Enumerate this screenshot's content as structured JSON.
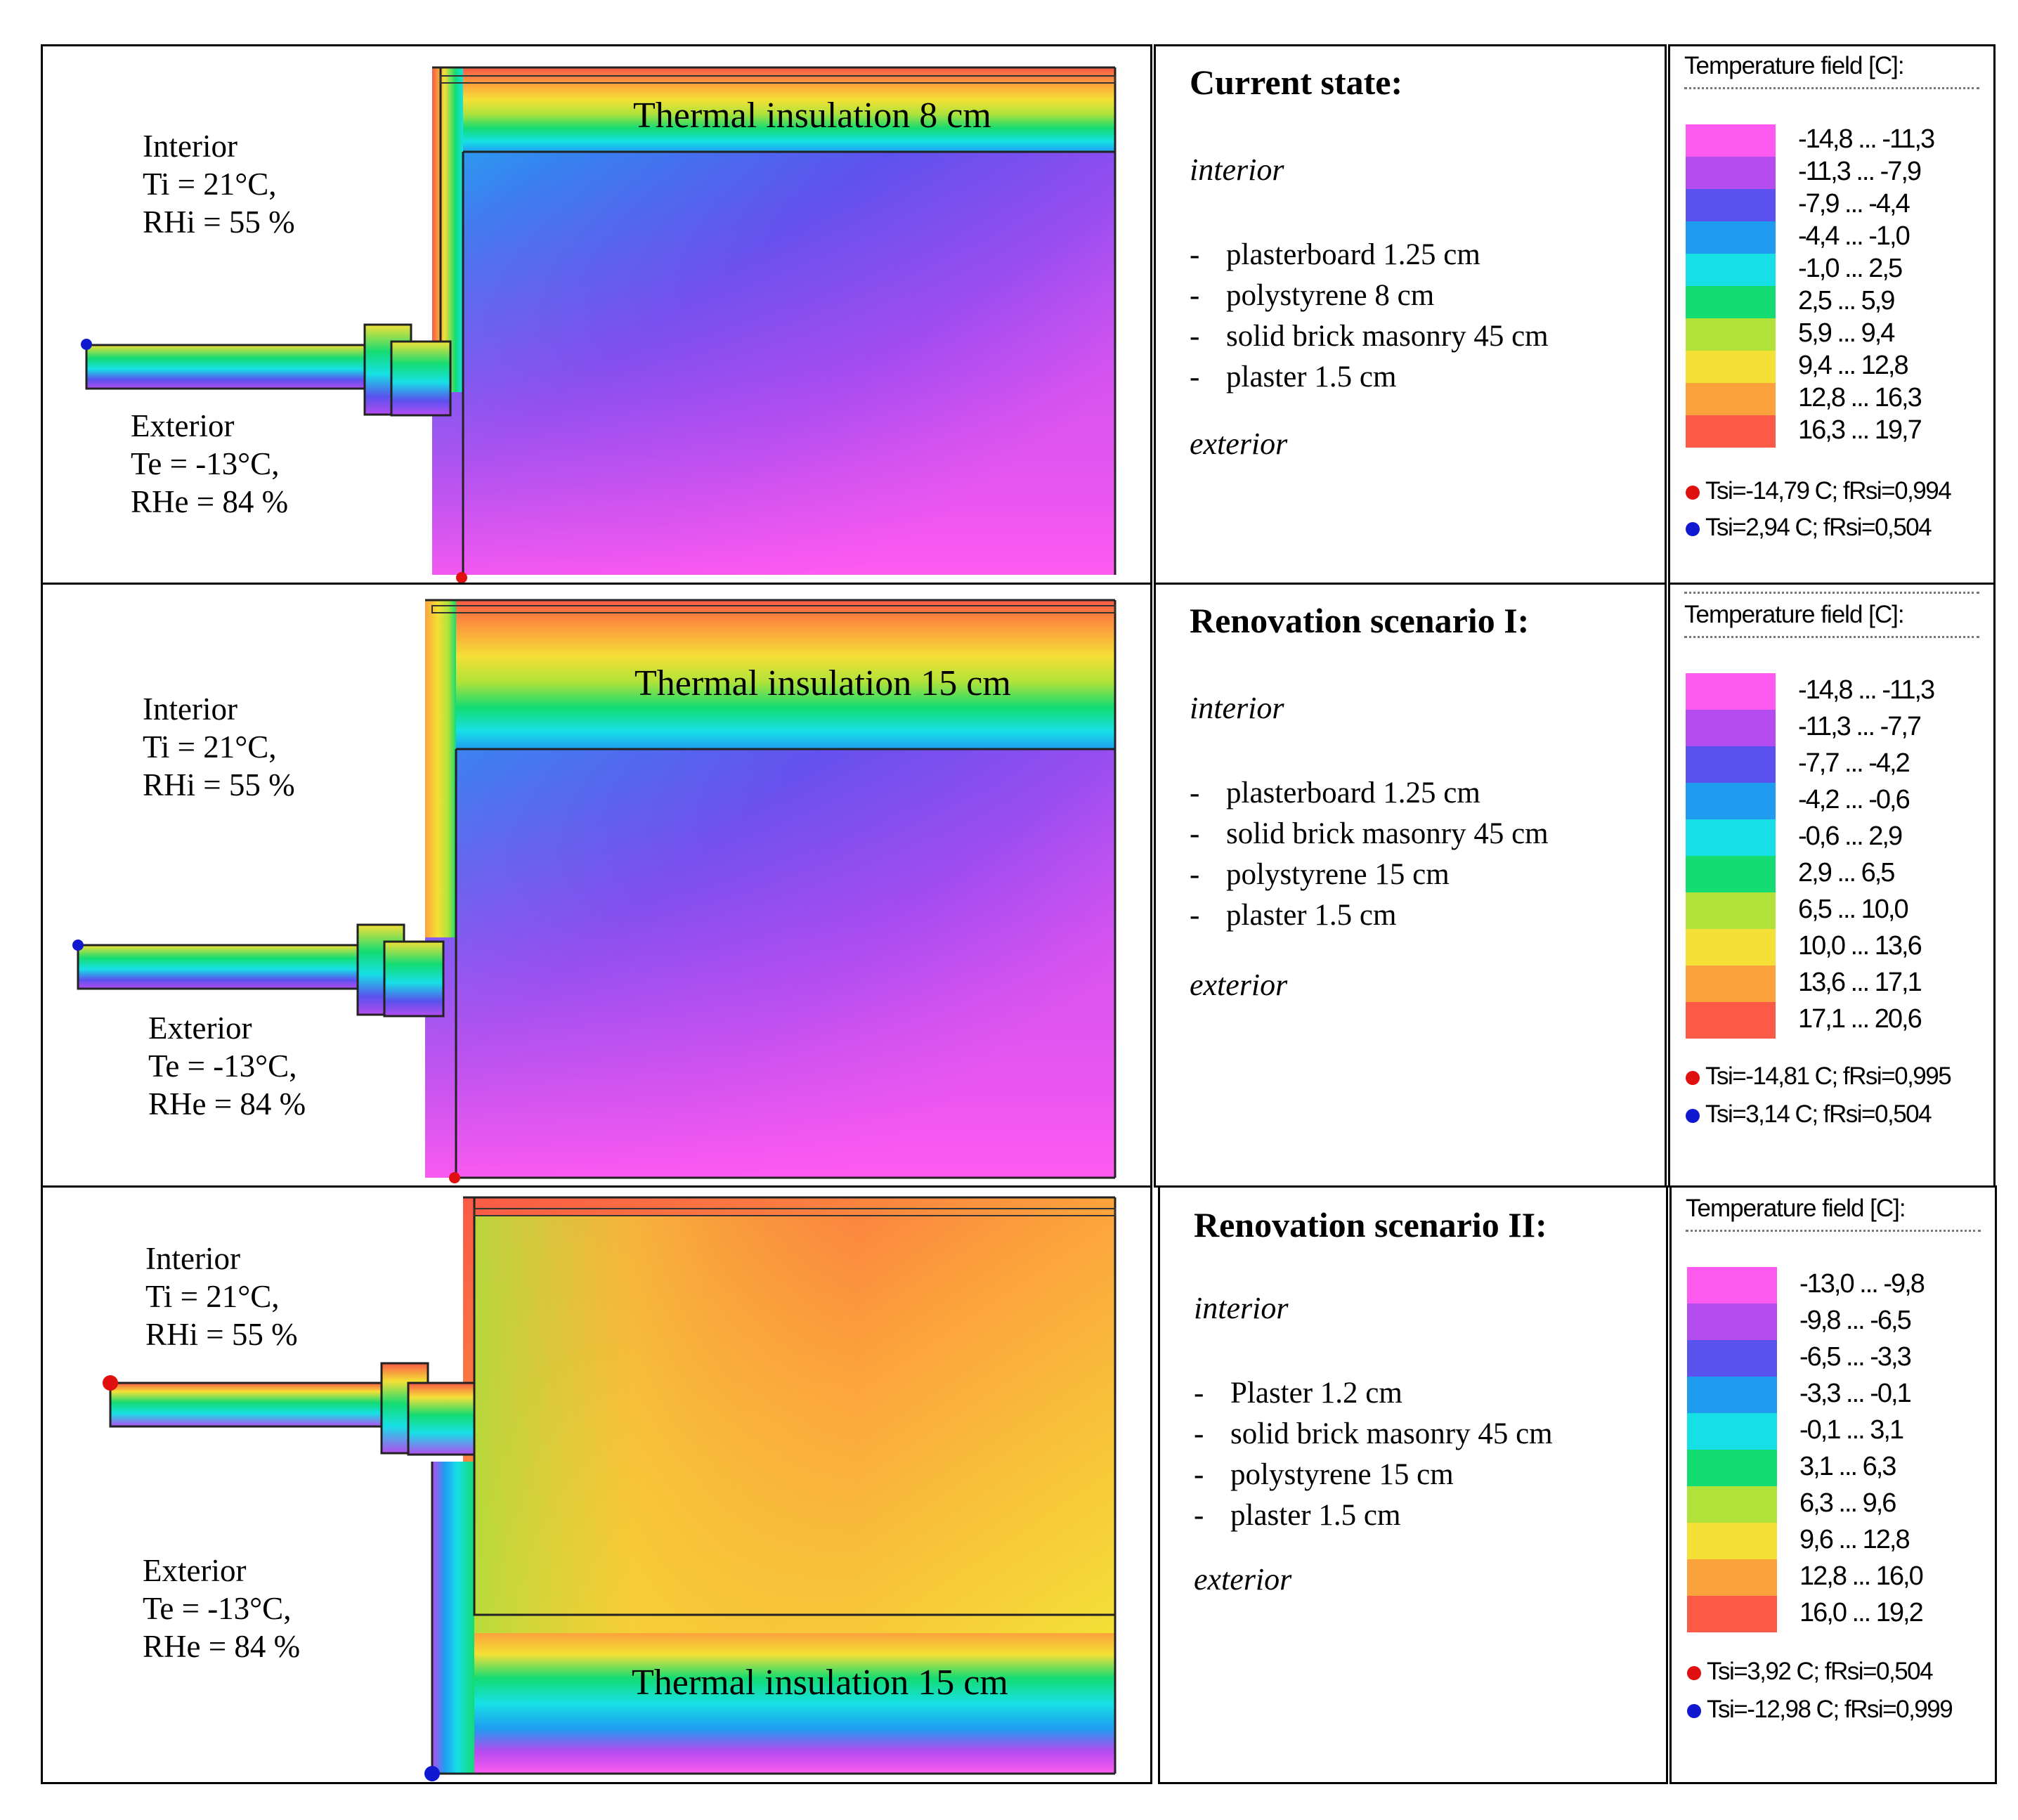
{
  "colors": {
    "palette": [
      "#ff5af0",
      "#b44cf0",
      "#5a52ee",
      "#1f9cf0",
      "#16e0e6",
      "#14dc72",
      "#b0e23a",
      "#f4e036",
      "#fca23c",
      "#fa5a46"
    ],
    "point_red": "#e01010",
    "point_blue": "#1018d0"
  },
  "panels": [
    {
      "interior": {
        "label": "Interior",
        "t": "Ti = 21°C,",
        "rh": "RHi = 55 %"
      },
      "exterior": {
        "label": "Exterior",
        "t": "Te = -13°C,",
        "rh": "RHe = 84 %"
      },
      "insulation_label": "Thermal insulation 8 cm",
      "title": "Current state:",
      "interior_side": "interior",
      "exterior_side": "exterior",
      "layers": [
        "plasterboard 1.25 cm",
        "polystyrene 8 cm",
        "solid brick masonry 45 cm",
        "plaster 1.5 cm"
      ],
      "legend": {
        "title": "Temperature field [C]:",
        "ranges": [
          "-14,8 ... -11,3",
          "-11,3 ... -7,9",
          "-7,9 ... -4,4",
          "-4,4 ... -1,0",
          "-1,0 ... 2,5",
          "2,5 ... 5,9",
          "5,9 ... 9,4",
          "9,4 ... 12,8",
          "12,8 ... 16,3",
          "16,3 ... 19,7"
        ],
        "point_red": "Tsi=-14,79 C; fRsi=0,994",
        "point_blue": "Tsi=2,94 C; fRsi=0,504"
      }
    },
    {
      "interior": {
        "label": "Interior",
        "t": "Ti = 21°C,",
        "rh": "RHi = 55 %"
      },
      "exterior": {
        "label": "Exterior",
        "t": "Te = -13°C,",
        "rh": "RHe = 84 %"
      },
      "insulation_label": "Thermal insulation 15 cm",
      "title": "Renovation scenario I:",
      "interior_side": "interior",
      "exterior_side": "exterior",
      "layers": [
        "plasterboard 1.25 cm",
        "solid brick masonry 45 cm",
        "polystyrene 15 cm",
        "plaster 1.5 cm"
      ],
      "legend": {
        "title": "Temperature field [C]:",
        "ranges": [
          "-14,8 ... -11,3",
          "-11,3 ... -7,7",
          "-7,7 ... -4,2",
          "-4,2 ... -0,6",
          "-0,6 ... 2,9",
          "2,9 ... 6,5",
          "6,5 ... 10,0",
          "10,0 ... 13,6",
          "13,6 ... 17,1",
          "17,1 ... 20,6"
        ],
        "point_red": "Tsi=-14,81 C; fRsi=0,995",
        "point_blue": "Tsi=3,14 C; fRsi=0,504"
      }
    },
    {
      "interior": {
        "label": "Interior",
        "t": "Ti = 21°C,",
        "rh": "RHi = 55 %"
      },
      "exterior": {
        "label": "Exterior",
        "t": "Te = -13°C,",
        "rh": "RHe = 84 %"
      },
      "insulation_label": "Thermal insulation 15 cm",
      "title": "Renovation scenario II:",
      "interior_side": "interior",
      "exterior_side": "exterior",
      "layers": [
        "Plaster  1.2 cm",
        "solid brick masonry 45 cm",
        "polystyrene 15 cm",
        "plaster 1.5 cm"
      ],
      "legend": {
        "title": "Temperature field [C]:",
        "ranges": [
          "-13,0 ... -9,8",
          "-9,8 ... -6,5",
          "-6,5 ... -3,3",
          "-3,3 ... -0,1",
          "-0,1 ... 3,1",
          "3,1 ... 6,3",
          "6,3 ... 9,6",
          "9,6 ... 12,8",
          "12,8 ... 16,0",
          "16,0 ... 19,2"
        ],
        "point_red": "Tsi=3,92 C; fRsi=0,504",
        "point_blue": "Tsi=-12,98 C; fRsi=0,999"
      }
    }
  ]
}
